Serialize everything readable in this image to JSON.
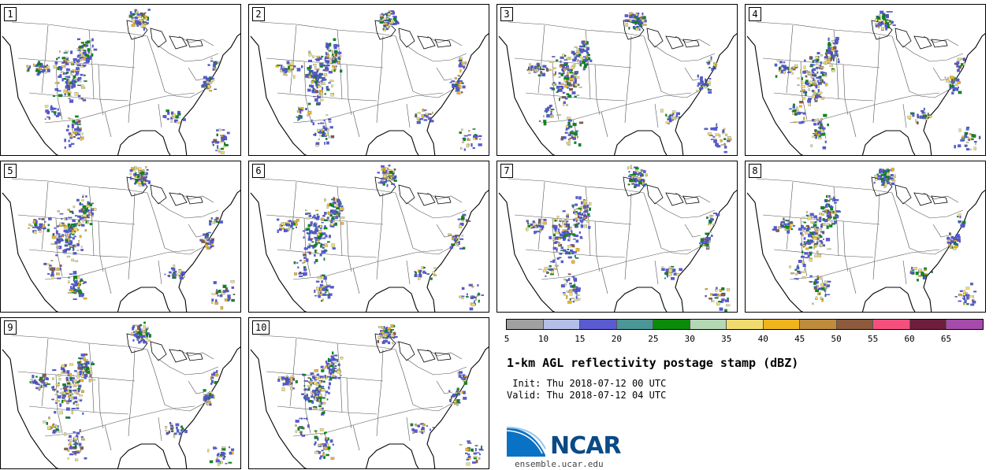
{
  "panels": [
    {
      "label": "1"
    },
    {
      "label": "2"
    },
    {
      "label": "3"
    },
    {
      "label": "4"
    },
    {
      "label": "5"
    },
    {
      "label": "6"
    },
    {
      "label": "7"
    },
    {
      "label": "8"
    },
    {
      "label": "9"
    },
    {
      "label": "10"
    }
  ],
  "colorbar": {
    "ticks": [
      "5",
      "10",
      "15",
      "20",
      "25",
      "30",
      "35",
      "40",
      "45",
      "50",
      "55",
      "60",
      "65"
    ],
    "colors": [
      "#a0a0a0",
      "#b4bee6",
      "#5a5ad2",
      "#4b9696",
      "#0a8c0a",
      "#b4d7b4",
      "#f0dc6e",
      "#f0b41e",
      "#be8c3c",
      "#8c5a3c",
      "#f5507d",
      "#6e1e3c",
      "#a54bab"
    ]
  },
  "title": "1-km AGL reflectivity postage stamp (dBZ)",
  "init_text": " Init: Thu 2018-07-12 00 UTC",
  "valid_text": "Valid: Thu 2018-07-12 04 UTC",
  "logo": {
    "name": "NCAR",
    "url": "ensemble.ucar.edu",
    "icon": "ncar-swoosh-icon"
  },
  "map_style": {
    "coastline_color": "#000000",
    "state_line_color": "#555555"
  }
}
